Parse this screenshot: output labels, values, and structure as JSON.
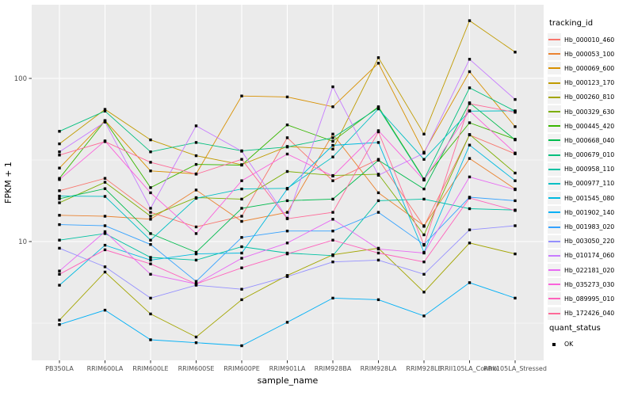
{
  "chart_data": {
    "type": "line",
    "title": "",
    "xlabel": "sample_name",
    "ylabel": "FPKM + 1",
    "y_scale": "log10",
    "y_ticks": [
      10,
      100
    ],
    "y_tick_labels": [
      "10",
      "100"
    ],
    "y_minor": [
      3.162,
      31.62,
      316.2
    ],
    "ylim_log": [
      1.87,
      270
    ],
    "grid": true,
    "legend_position": "right",
    "point_shape": "black-square",
    "categories": [
      "PB350LA",
      "RRIM600LA",
      "RRIM600LE",
      "RRIM600SE",
      "RRIM600PE",
      "RRIM901LA",
      "RRIM928BA",
      "RRIM928LA",
      "RRIM928LE",
      "RRII105LA_Control",
      "RRII105LA_Stressed"
    ],
    "series": [
      {
        "name": "Hb_000010_460",
        "color": "#F8766D",
        "values": [
          20.5,
          24.4,
          15.1,
          12.3,
          14.3,
          43.3,
          23.6,
          31.9,
          12.4,
          45,
          34.5
        ]
      },
      {
        "name": "Hb_000053_100",
        "color": "#EA8331",
        "values": [
          14.5,
          14.3,
          13.7,
          20.7,
          13.3,
          15.1,
          45.6,
          19.9,
          12.5,
          32.3,
          21
        ]
      },
      {
        "name": "Hb_000069_600",
        "color": "#D89000",
        "values": [
          28.2,
          55.2,
          27.1,
          26,
          78,
          77,
          67,
          124,
          35.3,
          110,
          50.6
        ]
      },
      {
        "name": "Hb_000123_170",
        "color": "#C09B00",
        "values": [
          39.7,
          64.6,
          42,
          33.6,
          29.6,
          38.3,
          36.9,
          134,
          45.6,
          226,
          145
        ]
      },
      {
        "name": "Hb_000260_810",
        "color": "#A3A500",
        "values": [
          3.3,
          6.5,
          3.6,
          2.6,
          4.4,
          6.2,
          8.3,
          9.1,
          4.9,
          9.8,
          8.4
        ]
      },
      {
        "name": "Hb_000329_630",
        "color": "#7CAE00",
        "values": [
          17.3,
          23.1,
          14.3,
          18.6,
          18.2,
          26.9,
          25.4,
          25.9,
          11,
          45.3,
          26.3
        ]
      },
      {
        "name": "Hb_000445_420",
        "color": "#39B600",
        "values": [
          24.4,
          55,
          21.4,
          29.7,
          29.4,
          51.9,
          41.2,
          67,
          24.2,
          53.5,
          42.4
        ]
      },
      {
        "name": "Hb_000668_040",
        "color": "#00BB4E",
        "values": [
          18.3,
          21.1,
          11.2,
          8.6,
          16,
          17.8,
          18.2,
          31.5,
          21,
          70.9,
          42
        ]
      },
      {
        "name": "Hb_000679_010",
        "color": "#00BF7D",
        "values": [
          47.4,
          63,
          35.5,
          40.5,
          36,
          38,
          43.3,
          66,
          24,
          87.5,
          63
        ]
      },
      {
        "name": "Hb_000958_110",
        "color": "#00C1A3",
        "values": [
          10.2,
          11.2,
          8,
          7.7,
          9.3,
          8.5,
          8.2,
          17.8,
          18.2,
          15.9,
          15.6
        ]
      },
      {
        "name": "Hb_000977_110",
        "color": "#00BFC4",
        "values": [
          19,
          18.9,
          10.2,
          18.4,
          21,
          21.2,
          33,
          65,
          31.9,
          63,
          63.3
        ]
      },
      {
        "name": "Hb_001545_080",
        "color": "#00BAE0",
        "values": [
          5.4,
          9.5,
          7.7,
          8.4,
          8.5,
          21,
          38.9,
          40.5,
          8.6,
          39,
          23.6
        ]
      },
      {
        "name": "Hb_001902_140",
        "color": "#00B0F6",
        "values": [
          3.1,
          3.8,
          2.5,
          2.4,
          2.3,
          3.2,
          4.5,
          4.4,
          3.5,
          5.6,
          4.5
        ]
      },
      {
        "name": "Hb_001983_020",
        "color": "#35A2FF",
        "values": [
          12.7,
          12.5,
          9.6,
          5.7,
          10.6,
          11.6,
          11.6,
          15.1,
          9.6,
          18.7,
          17.8
        ]
      },
      {
        "name": "Hb_003050_220",
        "color": "#9590FF",
        "values": [
          9.1,
          7,
          4.5,
          5.4,
          5.1,
          6.1,
          7.5,
          7.7,
          6.3,
          11.8,
          12.5
        ]
      },
      {
        "name": "Hb_010174_060",
        "color": "#C77CFF",
        "values": [
          35.5,
          54,
          16,
          51.2,
          35.8,
          13.9,
          88.8,
          25.5,
          34.8,
          131,
          74.3
        ]
      },
      {
        "name": "Hb_022181_020",
        "color": "#E76BF3",
        "values": [
          6.6,
          11.5,
          6.3,
          5.5,
          7.9,
          9.8,
          13.7,
          9,
          8.5,
          24.9,
          20.8
        ]
      },
      {
        "name": "Hb_035273_030",
        "color": "#FA62DB",
        "values": [
          24,
          41.4,
          19.9,
          11.2,
          23.6,
          34.4,
          25.2,
          47.8,
          23.8,
          63.3,
          34.9
        ]
      },
      {
        "name": "Hb_089995_010",
        "color": "#FF62BC",
        "values": [
          6.3,
          8.9,
          7.3,
          5.5,
          6.9,
          8.4,
          10.2,
          8.5,
          7.5,
          18.5,
          15.5
        ]
      },
      {
        "name": "Hb_172426_040",
        "color": "#FF6A98",
        "values": [
          33.9,
          41,
          30.6,
          25.9,
          31.9,
          13.8,
          15.1,
          47,
          9.5,
          70,
          62
        ]
      }
    ],
    "legend": {
      "color_title": "tracking_id",
      "shape_title": "quant_status",
      "shape_items": [
        "OK"
      ]
    },
    "panel_bg": "#EBEBEB",
    "grid_color": "#FFFFFF",
    "axis_text_color": "#4D4D4D",
    "point_color": "#000000"
  }
}
